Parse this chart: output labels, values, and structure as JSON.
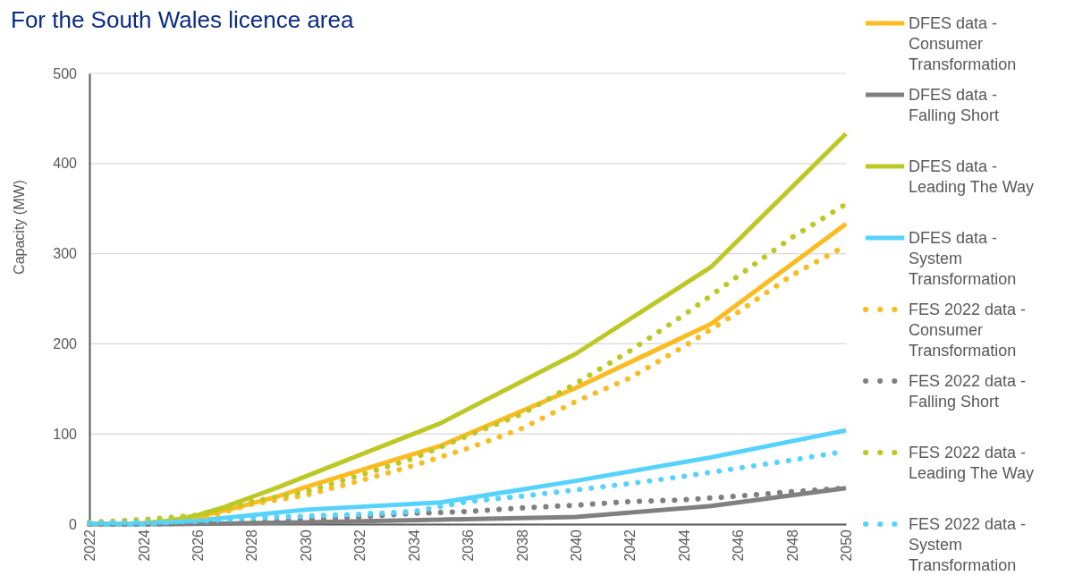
{
  "chart_data": {
    "type": "line",
    "subtitle": "For the South Wales licence area",
    "ylabel": "Capacity (MW)",
    "xlim": [
      2022,
      2050
    ],
    "xticks": [
      2022,
      2024,
      2026,
      2028,
      2030,
      2032,
      2034,
      2036,
      2038,
      2040,
      2042,
      2044,
      2046,
      2048,
      2050
    ],
    "ylim": [
      0,
      500
    ],
    "yticks": [
      0,
      100,
      200,
      300,
      400,
      500
    ],
    "grid": "y",
    "legend": "right",
    "series": [
      {
        "name": "DFES data - Consumer Transformation",
        "color": "#fbbb21",
        "line_style": "solid",
        "x": [
          2022,
          2023,
          2024,
          2025,
          2026,
          2027,
          2028,
          2029,
          2030,
          2035,
          2040,
          2045,
          2050
        ],
        "values": [
          0,
          0,
          1,
          3,
          8,
          15,
          23,
          31,
          41,
          87,
          151,
          222,
          333
        ]
      },
      {
        "name": "DFES data - Falling Short",
        "color": "#808080",
        "line_style": "solid",
        "x": [
          2022,
          2025,
          2030,
          2035,
          2040,
          2045,
          2050
        ],
        "values": [
          0,
          0,
          2,
          5,
          8,
          20,
          40
        ]
      },
      {
        "name": "DFES data - Leading The Way",
        "color": "#bcc824",
        "line_style": "solid",
        "x": [
          2022,
          2023,
          2024,
          2025,
          2026,
          2027,
          2028,
          2029,
          2030,
          2035,
          2040,
          2045,
          2050
        ],
        "values": [
          0,
          0,
          1,
          4,
          10,
          19,
          30,
          41,
          53,
          112,
          189,
          285,
          433
        ]
      },
      {
        "name": "DFES data - System Transformation",
        "color": "#55d3fd",
        "line_style": "solid",
        "x": [
          2022,
          2024,
          2025,
          2026,
          2028,
          2030,
          2035,
          2040,
          2045,
          2050
        ],
        "values": [
          0,
          0,
          2,
          4,
          10,
          16,
          24,
          48,
          74,
          104
        ]
      },
      {
        "name": "FES 2022 data - Consumer Transformation",
        "color": "#fbbb21",
        "line_style": "dotted",
        "x": [
          2022,
          2024,
          2026,
          2028,
          2030,
          2032,
          2034,
          2036,
          2038,
          2040,
          2042,
          2044,
          2046,
          2048,
          2050
        ],
        "values": [
          0,
          1,
          5,
          22,
          32,
          48,
          65,
          84,
          106,
          136,
          162,
          197,
          235,
          276,
          309
        ]
      },
      {
        "name": "FES 2022 data - Falling Short",
        "color": "#808080",
        "line_style": "dotted",
        "x": [
          2022,
          2024,
          2026,
          2028,
          2030,
          2032,
          2034,
          2036,
          2038,
          2040,
          2042,
          2044,
          2046,
          2048,
          2050
        ],
        "values": [
          0,
          0,
          1,
          2,
          5,
          8,
          12,
          14,
          18,
          21,
          25,
          27,
          31,
          36,
          40
        ]
      },
      {
        "name": "FES 2022 data - Leading The Way",
        "color": "#bcc824",
        "line_style": "dotted",
        "x": [
          2022,
          2024,
          2026,
          2028,
          2030,
          2032,
          2034,
          2036,
          2038,
          2040,
          2042,
          2044,
          2046,
          2048,
          2050
        ],
        "values": [
          2,
          5,
          10,
          25,
          36,
          54,
          73,
          98,
          122,
          156,
          192,
          232,
          275,
          318,
          355
        ]
      },
      {
        "name": "FES 2022 data - System Transformation",
        "color": "#55d3fd",
        "line_style": "dotted",
        "x": [
          2022,
          2024,
          2026,
          2028,
          2030,
          2032,
          2034,
          2036,
          2038,
          2040,
          2042,
          2044,
          2046,
          2048,
          2050
        ],
        "values": [
          1,
          2,
          3,
          7,
          9,
          11,
          14,
          25,
          31,
          38,
          45,
          53,
          62,
          71,
          81
        ]
      }
    ]
  }
}
